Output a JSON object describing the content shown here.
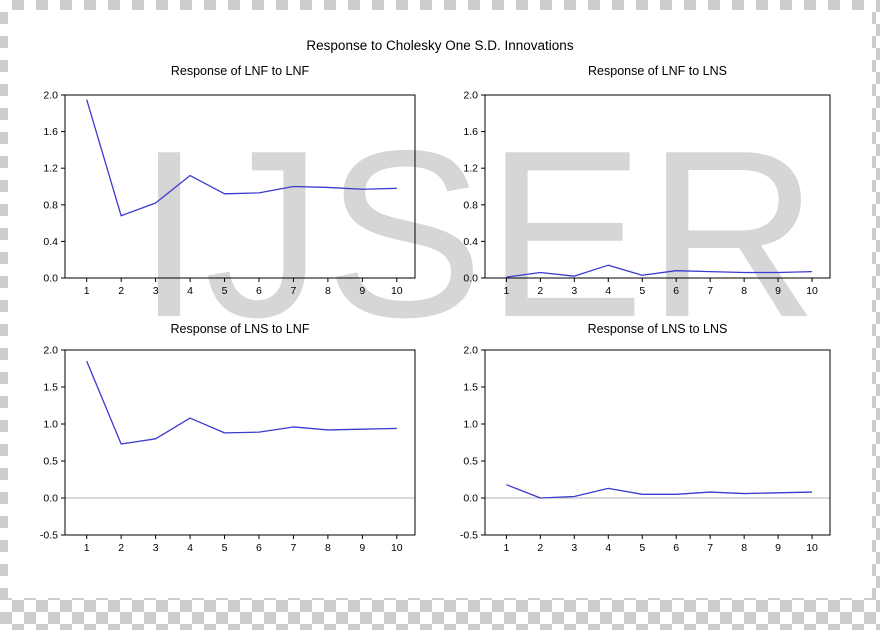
{
  "figure": {
    "title": "Response to Cholesky One S.D. Innovations"
  },
  "watermark": {
    "text": "IJSER",
    "color": "#d6d6d6"
  },
  "style": {
    "line_color": "#3b3bcf",
    "zero_line_color": "#b3b3b3",
    "axis_color": "#000000"
  },
  "chart_data": [
    {
      "type": "line",
      "title": "Response of LNF to LNF",
      "x": [
        1,
        2,
        3,
        4,
        5,
        6,
        7,
        8,
        9,
        10
      ],
      "values": [
        1.95,
        0.68,
        0.82,
        1.12,
        0.92,
        0.93,
        1.0,
        0.99,
        0.97,
        0.98
      ],
      "ylim": [
        0.0,
        2.0
      ],
      "yticks": [
        0.0,
        0.4,
        0.8,
        1.2,
        1.6,
        2.0
      ],
      "xticks": [
        1,
        2,
        3,
        4,
        5,
        6,
        7,
        8,
        9,
        10
      ],
      "zero_line": false,
      "legend": "none",
      "grid": "off"
    },
    {
      "type": "line",
      "title": "Response of LNF to LNS",
      "x": [
        1,
        2,
        3,
        4,
        5,
        6,
        7,
        8,
        9,
        10
      ],
      "values": [
        0.01,
        0.06,
        0.02,
        0.14,
        0.03,
        0.08,
        0.07,
        0.06,
        0.06,
        0.07
      ],
      "ylim": [
        0.0,
        2.0
      ],
      "yticks": [
        0.0,
        0.4,
        0.8,
        1.2,
        1.6,
        2.0
      ],
      "xticks": [
        1,
        2,
        3,
        4,
        5,
        6,
        7,
        8,
        9,
        10
      ],
      "zero_line": false,
      "legend": "none",
      "grid": "off"
    },
    {
      "type": "line",
      "title": "Response of LNS to LNF",
      "x": [
        1,
        2,
        3,
        4,
        5,
        6,
        7,
        8,
        9,
        10
      ],
      "values": [
        1.85,
        0.73,
        0.8,
        1.08,
        0.88,
        0.89,
        0.96,
        0.92,
        0.93,
        0.94
      ],
      "ylim": [
        -0.5,
        2.0
      ],
      "yticks": [
        -0.5,
        0.0,
        0.5,
        1.0,
        1.5,
        2.0
      ],
      "xticks": [
        1,
        2,
        3,
        4,
        5,
        6,
        7,
        8,
        9,
        10
      ],
      "zero_line": true,
      "legend": "none",
      "grid": "off"
    },
    {
      "type": "line",
      "title": "Response of LNS to LNS",
      "x": [
        1,
        2,
        3,
        4,
        5,
        6,
        7,
        8,
        9,
        10
      ],
      "values": [
        0.18,
        0.0,
        0.02,
        0.13,
        0.05,
        0.05,
        0.08,
        0.06,
        0.07,
        0.08
      ],
      "ylim": [
        -0.5,
        2.0
      ],
      "yticks": [
        -0.5,
        0.0,
        0.5,
        1.0,
        1.5,
        2.0
      ],
      "xticks": [
        1,
        2,
        3,
        4,
        5,
        6,
        7,
        8,
        9,
        10
      ],
      "zero_line": true,
      "legend": "none",
      "grid": "off"
    }
  ]
}
